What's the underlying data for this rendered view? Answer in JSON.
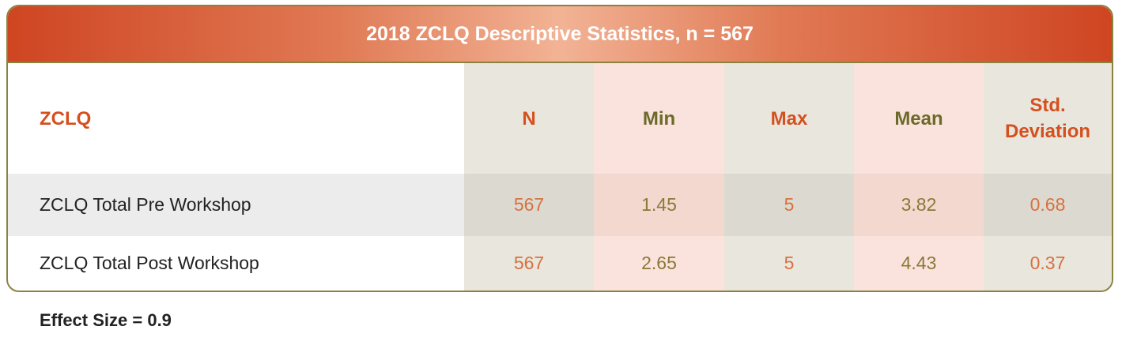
{
  "table": {
    "title": "2018 ZCLQ Descriptive Statistics, n = 567",
    "columns": [
      "ZCLQ",
      "N",
      "Min",
      "Max",
      "Mean",
      "Std. Deviation"
    ],
    "rows": [
      [
        "ZCLQ Total Pre Workshop",
        "567",
        "1.45",
        "5",
        "3.82",
        "0.68"
      ],
      [
        "ZCLQ Total Post Workshop",
        "567",
        "2.65",
        "5",
        "4.43",
        "0.37"
      ]
    ]
  },
  "footer": "Effect Size = 0.9"
}
